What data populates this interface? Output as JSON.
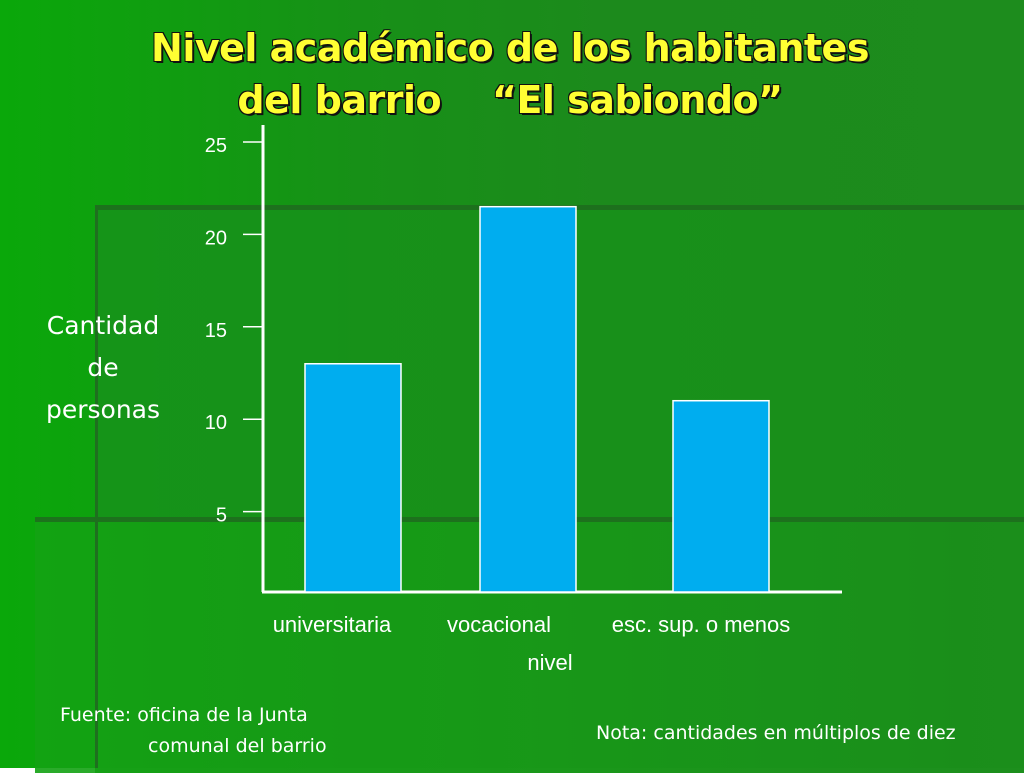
{
  "slide": {
    "title_line1": "Nivel académico de los habitantes",
    "title_line2": "del barrio    “El sabiondo”",
    "source_line1": "Fuente: oficina de la Junta",
    "source_line2": "comunal del barrio",
    "note": "Nota: cantidades en múltiplos de diez",
    "colors": {
      "background": "#1a8f1a",
      "title": "#ffff33",
      "bar": "#00adef",
      "axis": "#ffffff"
    }
  },
  "chart_data": {
    "type": "bar",
    "title": "Nivel académico de los habitantes del barrio “El sabiondo”",
    "categories": [
      "universitaria",
      "vocacional",
      "esc. sup. o menos"
    ],
    "values": [
      13,
      21.5,
      11
    ],
    "xlabel": "nivel",
    "ylabel_lines": [
      "Cantidad",
      "de",
      "personas"
    ],
    "yticks": [
      5,
      10,
      15,
      20,
      25
    ],
    "ylim": [
      0,
      25
    ],
    "grid": false,
    "legend": "none"
  }
}
